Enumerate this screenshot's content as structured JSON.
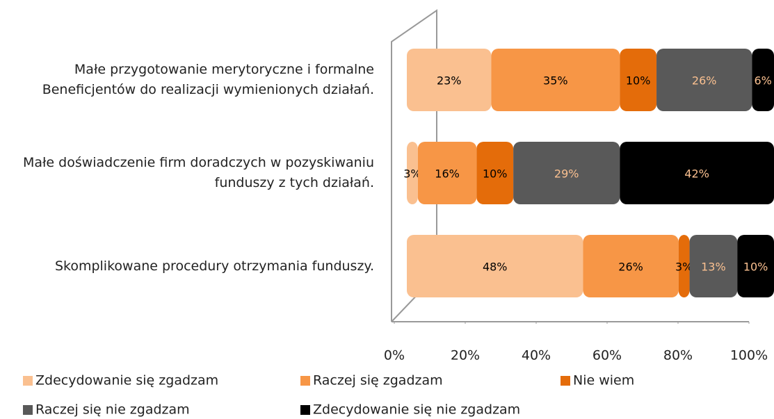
{
  "chart_data": {
    "type": "stacked_bar_horizontal",
    "categories": [
      "Małe przygotowanie merytoryczne i formalne Beneficjentów do realizacji wymienionych działań.",
      "Małe doświadczenie firm doradczych w pozyskiwaniu funduszy z tych działań.",
      "Skomplikowane procedury otrzymania funduszy."
    ],
    "series": [
      {
        "name": "Zdecydowanie się zgadzam",
        "color": "#fac090",
        "label_color": "#000000",
        "values": [
          23,
          3,
          48
        ],
        "value_labels": [
          "23%",
          "3%",
          "48%"
        ]
      },
      {
        "name": "Raczej się zgadzam",
        "color": "#f79646",
        "label_color": "#000000",
        "values": [
          35,
          16,
          26
        ],
        "value_labels": [
          "35%",
          "16%",
          "26%"
        ]
      },
      {
        "name": "Nie wiem",
        "color": "#e46c0a",
        "label_color": "#000000",
        "values": [
          10,
          10,
          3
        ],
        "value_labels": [
          "10%",
          "10%",
          "3%"
        ]
      },
      {
        "name": "Raczej się nie zgadzam",
        "color": "#595959",
        "label_color": "#fac090",
        "values": [
          26,
          29,
          13
        ],
        "value_labels": [
          "26%",
          "29%",
          "13%"
        ]
      },
      {
        "name": "Zdecydowanie się nie zgadzam",
        "color": "#000000",
        "label_color": "#fac090",
        "values": [
          6,
          42,
          10
        ],
        "value_labels": [
          "6%",
          "42%",
          "10%"
        ]
      }
    ],
    "xlim": [
      0,
      100
    ],
    "xticks": [
      {
        "value": 0,
        "label": "0%"
      },
      {
        "value": 20,
        "label": "20%"
      },
      {
        "value": 40,
        "label": "40%"
      },
      {
        "value": 60,
        "label": "60%"
      },
      {
        "value": 80,
        "label": "80%"
      },
      {
        "value": 100,
        "label": "100%"
      }
    ],
    "legend": "bottom"
  }
}
